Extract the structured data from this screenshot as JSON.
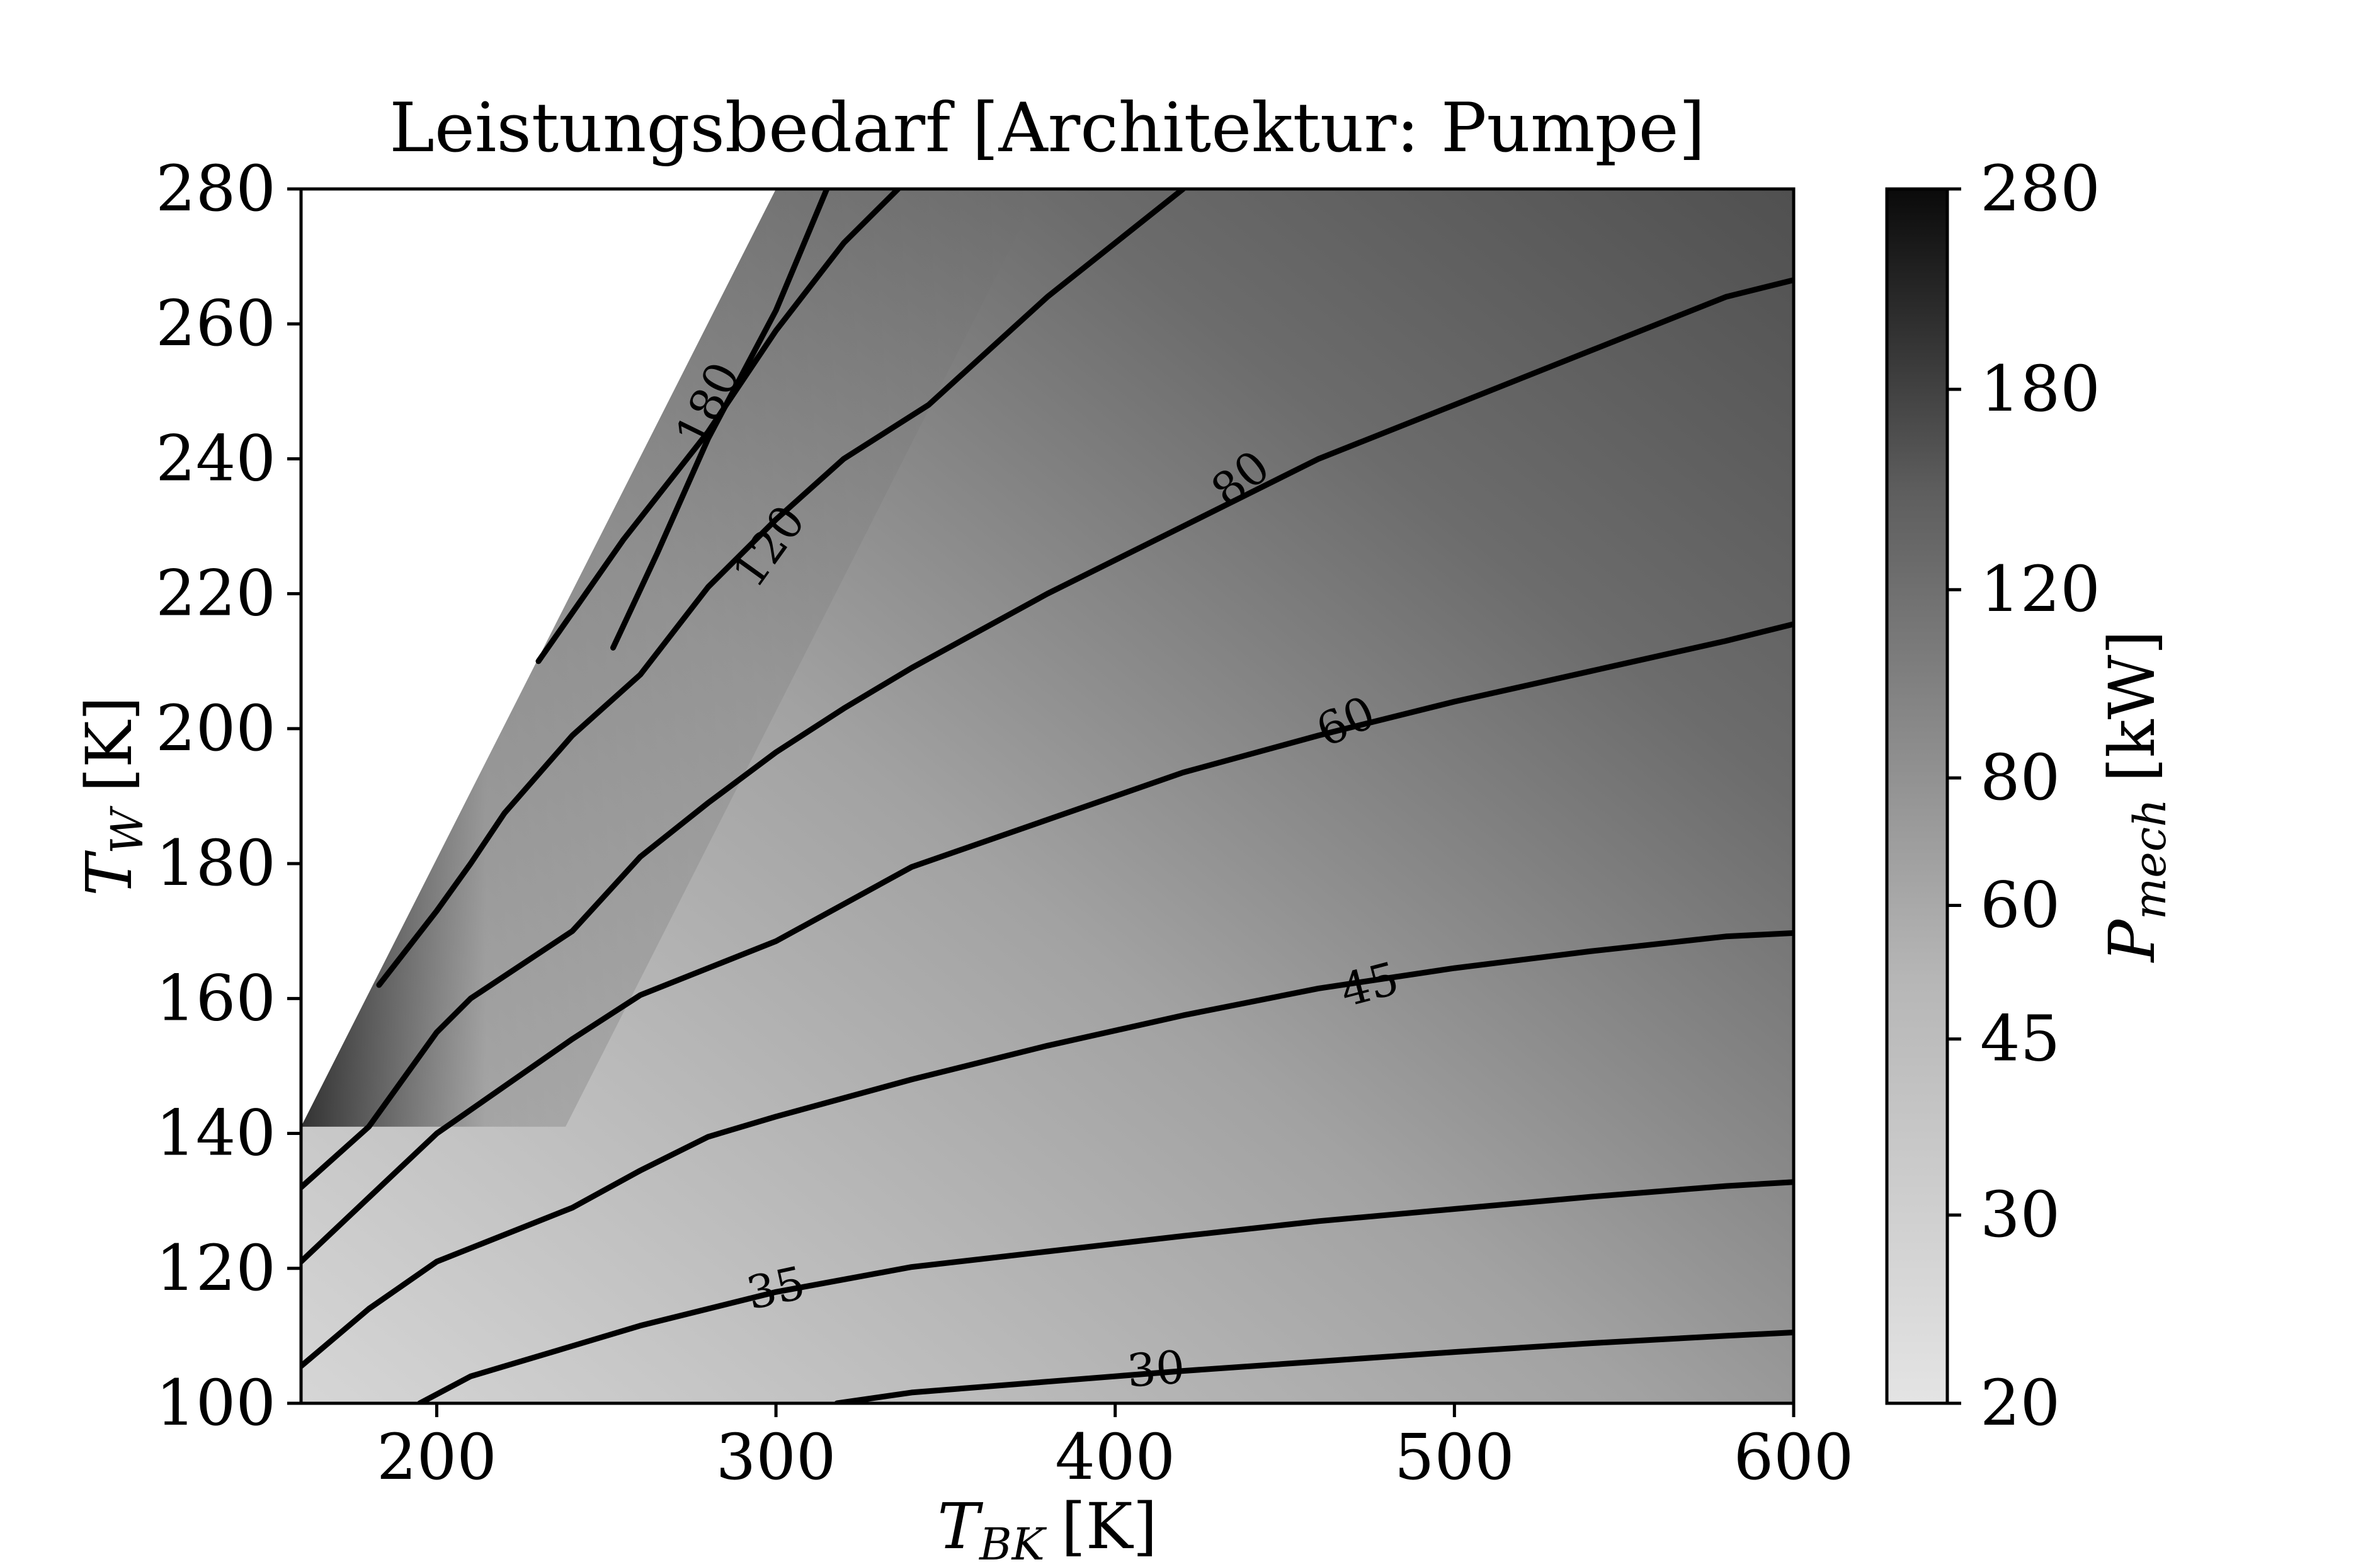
{
  "chart_data": {
    "type": "contour",
    "title": "Leistungsbedarf [Architektur: Pumpe]",
    "xlabel": {
      "main": "T",
      "sub": "BK",
      "unit": "[K]"
    },
    "ylabel": {
      "main": "T",
      "sub": "W",
      "unit": "[K]"
    },
    "xlim": [
      160,
      600
    ],
    "ylim": [
      100,
      280
    ],
    "x_ticks": [
      200,
      300,
      400,
      500,
      600
    ],
    "y_ticks": [
      100,
      120,
      140,
      160,
      180,
      200,
      220,
      240,
      260,
      280
    ],
    "x_tick_labels": [
      "200",
      "300",
      "400",
      "500",
      "600"
    ],
    "y_tick_labels": [
      "100",
      "120",
      "140",
      "160",
      "180",
      "200",
      "220",
      "240",
      "260",
      "280"
    ],
    "valid_region_boundary": [
      [
        160,
        141
      ],
      [
        300,
        280
      ]
    ],
    "colorbar": {
      "label": {
        "main": "P",
        "sub": "mech",
        "unit": "[kW]"
      },
      "range": [
        20,
        280
      ],
      "ticks": [
        20,
        30,
        45,
        60,
        80,
        120,
        180,
        280
      ],
      "tick_labels": [
        "20",
        "30",
        "45",
        "60",
        "80",
        "120",
        "180",
        "280"
      ],
      "cmap": "Greys"
    },
    "contour_levels": [
      {
        "level": 30,
        "label": "30",
        "label_at": [
          412,
          105
        ],
        "points": [
          [
            318,
            100
          ],
          [
            340,
            101.6
          ],
          [
            380,
            103.2
          ],
          [
            420,
            104.8
          ],
          [
            460,
            106.2
          ],
          [
            500,
            107.6
          ],
          [
            540,
            108.9
          ],
          [
            580,
            110
          ],
          [
            600,
            110.5
          ]
        ]
      },
      {
        "level": 35,
        "label": "35",
        "label_at": [
          300,
          117
        ],
        "points": [
          [
            195,
            100
          ],
          [
            210,
            104
          ],
          [
            240,
            108.5
          ],
          [
            260,
            111.5
          ],
          [
            300,
            116.5
          ],
          [
            340,
            120.2
          ],
          [
            380,
            122.5
          ],
          [
            420,
            124.8
          ],
          [
            460,
            127
          ],
          [
            500,
            128.8
          ],
          [
            540,
            130.6
          ],
          [
            580,
            132.2
          ],
          [
            600,
            132.8
          ]
        ]
      },
      {
        "level": 40,
        "label": "",
        "points": [
          [
            160,
            105.5
          ],
          [
            180,
            114
          ],
          [
            200,
            121
          ],
          [
            240,
            129
          ],
          [
            260,
            134.5
          ],
          [
            280,
            139.5
          ],
          [
            300,
            142.5
          ],
          [
            340,
            148
          ],
          [
            380,
            153
          ],
          [
            420,
            157.5
          ],
          [
            460,
            161.5
          ],
          [
            500,
            164.5
          ],
          [
            540,
            167
          ],
          [
            580,
            169.2
          ],
          [
            600,
            169.7
          ]
        ]
      },
      {
        "level": 45,
        "label": "45",
        "label_at": [
          475,
          162
        ],
        "points": [
          [
            160,
            121
          ],
          [
            180,
            130.5
          ],
          [
            200,
            140
          ],
          [
            220,
            147
          ],
          [
            240,
            154
          ],
          [
            260,
            160.5
          ],
          [
            300,
            168.5
          ],
          [
            340,
            179.5
          ],
          [
            380,
            186.5
          ],
          [
            420,
            193.5
          ],
          [
            460,
            199
          ],
          [
            500,
            204
          ],
          [
            540,
            208.5
          ],
          [
            580,
            213
          ],
          [
            600,
            215.5
          ]
        ]
      },
      {
        "level": 60,
        "label": "60",
        "label_at": [
          468,
          201
        ],
        "points": [
          [
            160,
            132
          ],
          [
            180,
            141
          ],
          [
            200,
            155
          ],
          [
            210,
            160
          ],
          [
            240,
            170
          ],
          [
            260,
            181
          ],
          [
            280,
            189
          ],
          [
            300,
            196.5
          ],
          [
            320,
            203
          ],
          [
            340,
            209
          ],
          [
            380,
            220
          ],
          [
            420,
            230
          ],
          [
            460,
            240
          ],
          [
            500,
            248
          ],
          [
            540,
            256
          ],
          [
            580,
            264
          ],
          [
            600,
            266.5
          ]
        ]
      },
      {
        "level": 80,
        "label": "80",
        "label_at": [
          437,
          237
        ],
        "points": [
          [
            183,
            162
          ],
          [
            200,
            173
          ],
          [
            210,
            180
          ],
          [
            220,
            187.5
          ],
          [
            240,
            199
          ],
          [
            260,
            208
          ],
          [
            280,
            221
          ],
          [
            300,
            231
          ],
          [
            320,
            240
          ],
          [
            345,
            248
          ],
          [
            380,
            264
          ],
          [
            420,
            280
          ]
        ]
      },
      {
        "level": 120,
        "label": "120",
        "label_at": [
          298,
          227
        ],
        "points": [
          [
            230,
            210
          ],
          [
            255,
            228
          ],
          [
            280,
            244
          ],
          [
            300,
            259
          ],
          [
            320,
            272
          ],
          [
            336,
            280
          ]
        ]
      },
      {
        "level": 180,
        "label": "180",
        "label_at": [
          280,
          248
        ],
        "points": [
          [
            252,
            212
          ],
          [
            265,
            226
          ],
          [
            280,
            243
          ],
          [
            300,
            262
          ],
          [
            315,
            280
          ]
        ]
      }
    ]
  }
}
